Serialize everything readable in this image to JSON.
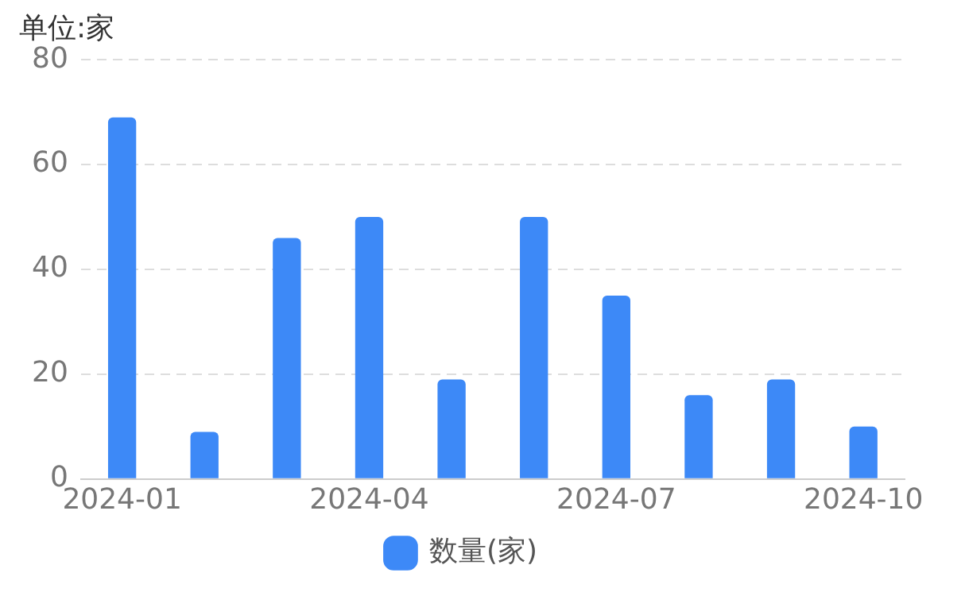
{
  "chart_data": {
    "type": "bar",
    "ylabel": "单位:家",
    "categories": [
      "2024-01",
      null,
      null,
      "2024-04",
      null,
      null,
      "2024-07",
      null,
      null,
      "2024-10"
    ],
    "series": [
      {
        "name": "数量(家)",
        "color": "#3d89f7",
        "values": [
          69,
          9,
          46,
          50,
          19,
          50,
          35,
          16,
          19,
          10
        ]
      }
    ],
    "ylim": [
      0,
      80
    ],
    "yticks": [
      0,
      20,
      40,
      60,
      80
    ],
    "grid": "y",
    "legend": "bottom"
  }
}
